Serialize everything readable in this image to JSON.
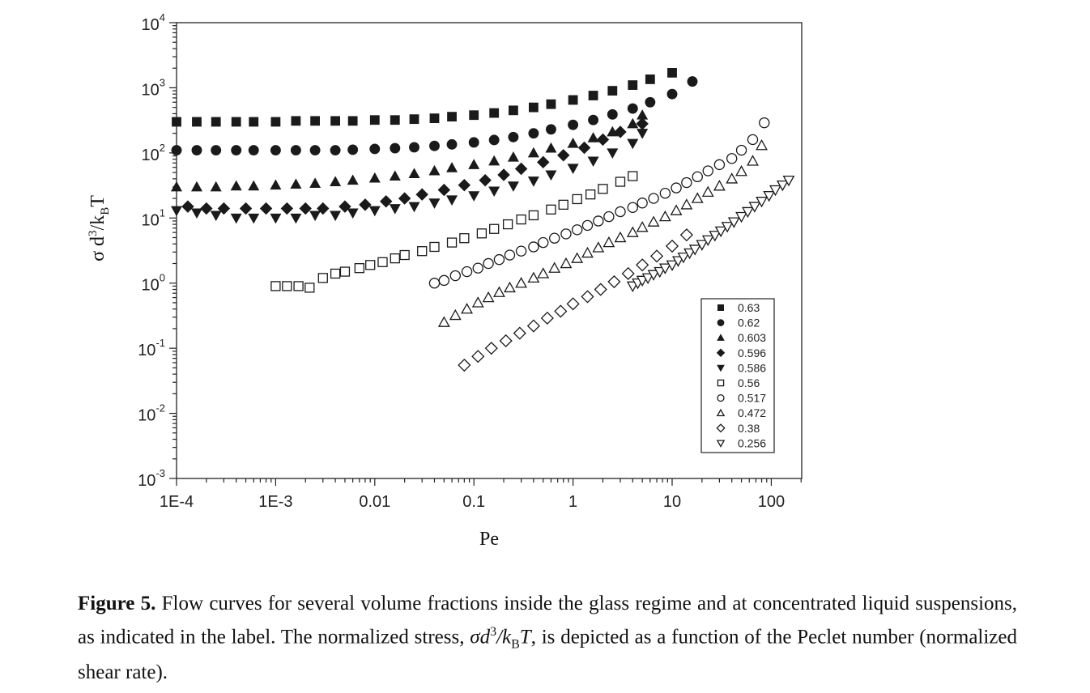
{
  "chart_data": {
    "type": "scatter",
    "xscale": "log",
    "yscale": "log",
    "xlim": [
      0.0001,
      200
    ],
    "ylim": [
      0.001,
      10000
    ],
    "xlabel": "Pe",
    "ylabel_parts": {
      "sigma": "σ",
      "d": " d",
      "exp": "3",
      "slash": "/k",
      "sub": "B",
      "T": "T"
    },
    "xticks": [
      0.0001,
      0.001,
      0.01,
      0.1,
      1,
      10,
      100
    ],
    "xtick_labels": [
      "1E-4",
      "1E-3",
      "0.01",
      "0.1",
      "1",
      "10",
      "100"
    ],
    "yticks": [
      0.001,
      0.01,
      0.1,
      1,
      10,
      100,
      1000,
      10000
    ],
    "ytick_labels": [
      {
        "base": "10",
        "exp": "-3"
      },
      {
        "base": "10",
        "exp": "-2"
      },
      {
        "base": "10",
        "exp": "-1"
      },
      {
        "base": "10",
        "exp": "0"
      },
      {
        "base": "10",
        "exp": "1"
      },
      {
        "base": "10",
        "exp": "2"
      },
      {
        "base": "10",
        "exp": "3"
      },
      {
        "base": "10",
        "exp": "4"
      }
    ],
    "legend_position": "bottom-right",
    "series": [
      {
        "name": "0.63",
        "marker": "square",
        "filled": true,
        "x": [
          0.0001,
          0.00016,
          0.00025,
          0.0004,
          0.0006,
          0.001,
          0.0016,
          0.0025,
          0.004,
          0.006,
          0.01,
          0.016,
          0.025,
          0.04,
          0.06,
          0.1,
          0.16,
          0.25,
          0.4,
          0.6,
          1,
          1.6,
          2.5,
          4,
          6,
          10
        ],
        "y": [
          300,
          300,
          300,
          300,
          300,
          300,
          310,
          310,
          310,
          310,
          320,
          320,
          330,
          340,
          360,
          380,
          410,
          450,
          500,
          560,
          650,
          760,
          900,
          1100,
          1350,
          1700
        ]
      },
      {
        "name": "0.62",
        "marker": "circle",
        "filled": true,
        "x": [
          0.0001,
          0.00016,
          0.00025,
          0.0004,
          0.0006,
          0.001,
          0.0016,
          0.0025,
          0.004,
          0.006,
          0.01,
          0.016,
          0.025,
          0.04,
          0.06,
          0.1,
          0.16,
          0.25,
          0.4,
          0.6,
          1,
          1.6,
          2.5,
          4,
          6,
          10,
          16
        ],
        "y": [
          110,
          110,
          110,
          110,
          110,
          110,
          110,
          110,
          110,
          112,
          115,
          118,
          122,
          128,
          135,
          145,
          158,
          175,
          200,
          230,
          270,
          320,
          390,
          480,
          600,
          800,
          1250
        ]
      },
      {
        "name": "0.603",
        "marker": "triangle-up",
        "filled": true,
        "x": [
          0.0001,
          0.00016,
          0.00025,
          0.0004,
          0.0006,
          0.001,
          0.0016,
          0.0025,
          0.004,
          0.006,
          0.01,
          0.016,
          0.025,
          0.04,
          0.06,
          0.1,
          0.16,
          0.25,
          0.4,
          0.6,
          1,
          1.6,
          2.5,
          4,
          5
        ],
        "y": [
          30,
          30,
          30,
          31,
          31,
          32,
          33,
          34,
          36,
          38,
          41,
          44,
          48,
          53,
          59,
          66,
          75,
          86,
          100,
          118,
          140,
          170,
          210,
          280,
          380
        ]
      },
      {
        "name": "0.596",
        "marker": "diamond",
        "filled": true,
        "x": [
          0.00013,
          0.0002,
          0.0003,
          0.0005,
          0.0008,
          0.0013,
          0.002,
          0.003,
          0.005,
          0.008,
          0.013,
          0.02,
          0.03,
          0.05,
          0.08,
          0.13,
          0.2,
          0.3,
          0.5,
          0.8,
          1.3,
          2,
          3,
          5
        ],
        "y": [
          15,
          14,
          14,
          14,
          14,
          14,
          14,
          14,
          15,
          16,
          18,
          20,
          23,
          27,
          32,
          38,
          46,
          57,
          72,
          92,
          120,
          160,
          210,
          280
        ]
      },
      {
        "name": "0.586",
        "marker": "triangle-down",
        "filled": true,
        "x": [
          0.0001,
          0.00016,
          0.00025,
          0.0004,
          0.0006,
          0.001,
          0.0016,
          0.0025,
          0.004,
          0.006,
          0.01,
          0.016,
          0.025,
          0.04,
          0.06,
          0.1,
          0.16,
          0.25,
          0.4,
          0.6,
          1,
          1.6,
          2.5,
          4,
          5
        ],
        "y": [
          13,
          12,
          11,
          10,
          10,
          10,
          10,
          11,
          11,
          12,
          13,
          14,
          15,
          17,
          19,
          22,
          26,
          31,
          37,
          46,
          58,
          75,
          100,
          140,
          200
        ]
      },
      {
        "name": "0.56",
        "marker": "square",
        "filled": false,
        "x": [
          0.001,
          0.0013,
          0.0017,
          0.0022,
          0.003,
          0.004,
          0.005,
          0.007,
          0.009,
          0.012,
          0.016,
          0.02,
          0.03,
          0.04,
          0.06,
          0.08,
          0.12,
          0.16,
          0.22,
          0.3,
          0.4,
          0.6,
          0.8,
          1.1,
          1.5,
          2,
          3,
          4
        ],
        "y": [
          0.9,
          0.9,
          0.9,
          0.85,
          1.2,
          1.4,
          1.5,
          1.7,
          1.9,
          2.1,
          2.4,
          2.7,
          3.1,
          3.6,
          4.2,
          4.9,
          5.8,
          6.8,
          8,
          9.5,
          11,
          13.5,
          16,
          19.5,
          23,
          28,
          36,
          44
        ]
      },
      {
        "name": "0.517",
        "marker": "circle",
        "filled": false,
        "x": [
          0.04,
          0.05,
          0.065,
          0.085,
          0.11,
          0.14,
          0.18,
          0.23,
          0.3,
          0.4,
          0.5,
          0.65,
          0.85,
          1.1,
          1.4,
          1.8,
          2.3,
          3,
          4,
          5,
          6.5,
          8.5,
          11,
          14,
          18,
          23,
          30,
          40,
          50,
          65,
          85
        ],
        "y": [
          1,
          1.1,
          1.3,
          1.5,
          1.7,
          2,
          2.3,
          2.7,
          3.1,
          3.6,
          4.2,
          4.9,
          5.7,
          6.6,
          7.7,
          9,
          10.5,
          12.5,
          14.5,
          17,
          20,
          24,
          29,
          35,
          43,
          53,
          66,
          82,
          110,
          160,
          290
        ]
      },
      {
        "name": "0.472",
        "marker": "triangle-up",
        "filled": false,
        "x": [
          0.05,
          0.065,
          0.085,
          0.11,
          0.14,
          0.18,
          0.23,
          0.3,
          0.4,
          0.5,
          0.65,
          0.85,
          1.1,
          1.4,
          1.8,
          2.3,
          3,
          4,
          5,
          6.5,
          8.5,
          11,
          14,
          18,
          23,
          30,
          40,
          50,
          65,
          80
        ],
        "y": [
          0.25,
          0.32,
          0.4,
          0.5,
          0.6,
          0.72,
          0.85,
          1,
          1.2,
          1.4,
          1.7,
          2,
          2.4,
          2.9,
          3.5,
          4.2,
          5,
          6,
          7.2,
          8.7,
          10.5,
          13,
          16,
          20,
          25,
          31,
          40,
          52,
          75,
          130
        ]
      },
      {
        "name": "0.38",
        "marker": "diamond",
        "filled": false,
        "x": [
          0.08,
          0.11,
          0.15,
          0.21,
          0.29,
          0.4,
          0.55,
          0.75,
          1,
          1.4,
          1.9,
          2.6,
          3.6,
          5,
          7,
          10,
          14
        ],
        "y": [
          0.055,
          0.075,
          0.1,
          0.13,
          0.17,
          0.22,
          0.29,
          0.37,
          0.48,
          0.62,
          0.8,
          1.05,
          1.4,
          1.9,
          2.6,
          3.7,
          5.5
        ]
      },
      {
        "name": "0.256",
        "marker": "triangle-down",
        "filled": false,
        "x": [
          4,
          4.5,
          5,
          5.7,
          6.5,
          7.5,
          8.5,
          10,
          11.5,
          13,
          15,
          17,
          20,
          23,
          27,
          31,
          36,
          42,
          50,
          58,
          68,
          80,
          95,
          110,
          130,
          150
        ],
        "y": [
          0.9,
          1,
          1.1,
          1.2,
          1.35,
          1.5,
          1.7,
          1.9,
          2.2,
          2.5,
          2.9,
          3.3,
          3.9,
          4.6,
          5.4,
          6.3,
          7.4,
          8.7,
          10.5,
          12.5,
          15,
          18,
          22,
          27,
          32,
          38
        ]
      }
    ]
  },
  "caption": {
    "label": "Figure 5.",
    "text1": " Flow curves for several volume fractions inside the glass regime and at concentrated liquid suspensions, as indicated in the label. The normalized stress, ",
    "math_sigma_d": "σd",
    "math_exp": "3",
    "math_slash_k": "/k",
    "math_sub": "B",
    "math_T": "T",
    "text2": ", is depicted as a function of the Peclet number (normalized shear rate)."
  }
}
